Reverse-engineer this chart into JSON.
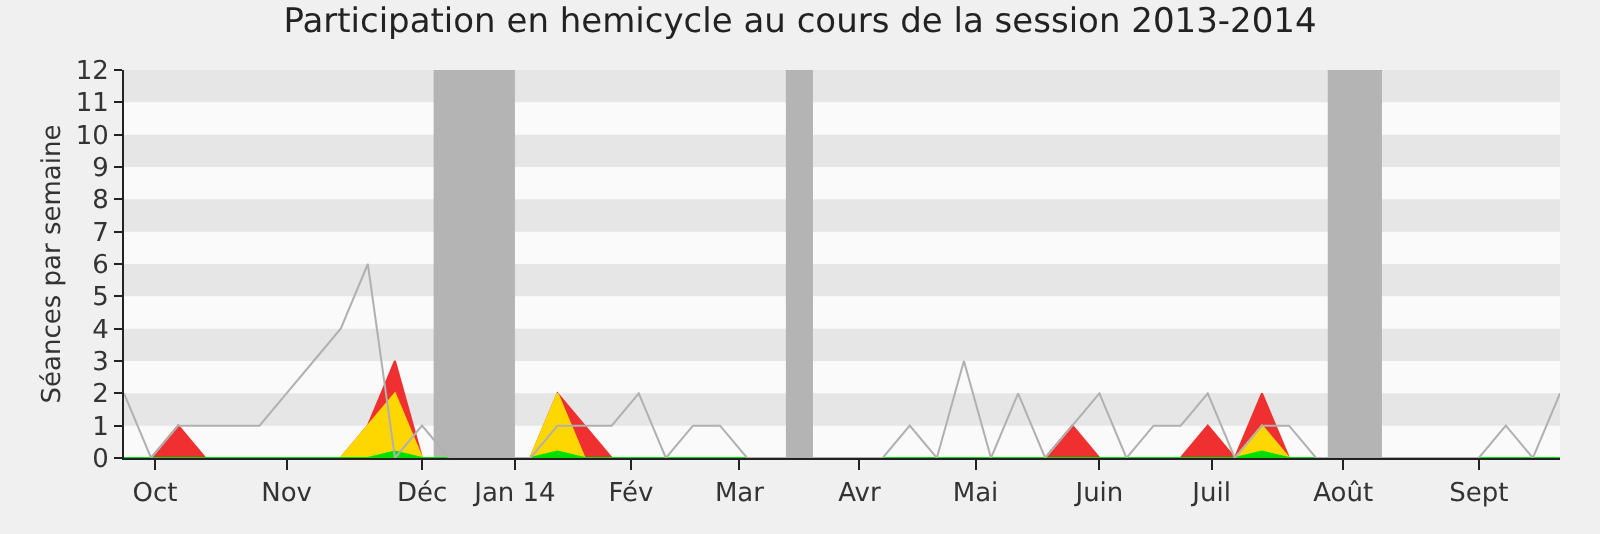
{
  "chart_data": {
    "type": "area",
    "title": "Participation en hemicycle au cours de la session 2013-2014",
    "ylabel": "Séances par semaine",
    "x": [
      "2013-09-23",
      "2013-09-30",
      "2013-10-07",
      "2013-10-14",
      "2013-10-21",
      "2013-10-28",
      "2013-11-04",
      "2013-11-11",
      "2013-11-18",
      "2013-11-25",
      "2013-12-02",
      "2013-12-09",
      "2013-12-16",
      "2013-12-23",
      "2013-12-30",
      "2014-01-06",
      "2014-01-13",
      "2014-01-20",
      "2014-01-27",
      "2014-02-03",
      "2014-02-10",
      "2014-02-17",
      "2014-02-24",
      "2014-03-03",
      "2014-03-10",
      "2014-03-17",
      "2014-03-24",
      "2014-03-31",
      "2014-04-07",
      "2014-04-14",
      "2014-04-21",
      "2014-04-28",
      "2014-05-05",
      "2014-05-12",
      "2014-05-19",
      "2014-05-26",
      "2014-06-02",
      "2014-06-09",
      "2014-06-16",
      "2014-06-23",
      "2014-06-30",
      "2014-07-07",
      "2014-07-14",
      "2014-07-21",
      "2014-07-28",
      "2014-08-04",
      "2014-08-11",
      "2014-08-18",
      "2014-08-25",
      "2014-09-01",
      "2014-09-08",
      "2014-09-15",
      "2014-09-22",
      "2014-09-29"
    ],
    "series": [
      {
        "color": "#f03030",
        "values": [
          0,
          0,
          1,
          0,
          0,
          0,
          0,
          0,
          0,
          1,
          3,
          0,
          0,
          0,
          0,
          0,
          2,
          1,
          0,
          0,
          0,
          0,
          0,
          0,
          0,
          0,
          0,
          0,
          0,
          0,
          0,
          0,
          0,
          0,
          0,
          1,
          0,
          0,
          0,
          0,
          1,
          0,
          2,
          0,
          0,
          0,
          0,
          0,
          0,
          0,
          0,
          0,
          0,
          0
        ]
      },
      {
        "color": "#ffd700",
        "values": [
          0,
          0,
          0,
          0,
          0,
          0,
          0,
          0,
          0,
          1,
          2,
          0,
          0,
          0,
          0,
          0,
          2,
          0,
          0,
          0,
          0,
          0,
          0,
          0,
          0,
          0,
          0,
          0,
          0,
          0,
          0,
          0,
          0,
          0,
          0,
          0,
          0,
          0,
          0,
          0,
          0,
          0,
          1,
          0,
          0,
          0,
          0,
          0,
          0,
          0,
          0,
          0,
          0,
          0
        ]
      },
      {
        "color": "#00e000",
        "values": [
          0,
          0,
          0,
          0,
          0,
          0,
          0,
          0,
          0,
          0,
          0.2,
          0,
          0,
          0,
          0,
          0,
          0.2,
          0,
          0,
          0,
          0,
          0,
          0,
          0,
          0,
          0,
          0,
          0,
          0,
          0,
          0,
          0,
          0,
          0,
          0,
          0,
          0,
          0,
          0,
          0,
          0,
          0,
          0.2,
          0,
          0,
          0,
          0,
          0,
          0,
          0,
          0,
          0,
          0,
          0
        ]
      },
      {
        "type": "line",
        "color": "#b0b0b0",
        "values": [
          2,
          0,
          1,
          1,
          1,
          1,
          2,
          3,
          4,
          6,
          0,
          1,
          0,
          0,
          0,
          0,
          1,
          1,
          1,
          2,
          0,
          1,
          1,
          0,
          0,
          0,
          0,
          0,
          0,
          1,
          0,
          3,
          0,
          2,
          0,
          1,
          2,
          0,
          1,
          1,
          2,
          0,
          1,
          1,
          0,
          0,
          0,
          0,
          0,
          0,
          0,
          1,
          0,
          2
        ]
      }
    ],
    "xlim": [
      "2013-09-23",
      "2014-09-29"
    ],
    "ylim": [
      0,
      12
    ],
    "yticks": [
      0,
      1,
      2,
      3,
      4,
      5,
      6,
      7,
      8,
      9,
      10,
      11,
      12
    ],
    "xticks": [
      {
        "value": "2013-10-01",
        "label": "Oct"
      },
      {
        "value": "2013-11-04",
        "label": "Nov"
      },
      {
        "value": "2013-12-09",
        "label": "Déc"
      },
      {
        "value": "2014-01-02",
        "label": "Jan 14"
      },
      {
        "value": "2014-02-01",
        "label": "Fév"
      },
      {
        "value": "2014-03-01",
        "label": "Mar"
      },
      {
        "value": "2014-04-01",
        "label": "Avr"
      },
      {
        "value": "2014-05-01",
        "label": "Mai"
      },
      {
        "value": "2014-06-02",
        "label": "Juin"
      },
      {
        "value": "2014-07-01",
        "label": "Juil"
      },
      {
        "value": "2014-08-04",
        "label": "Août"
      },
      {
        "value": "2014-09-08",
        "label": "Sept"
      }
    ],
    "bands": [
      {
        "axis": "y",
        "from": 1,
        "to": 2,
        "color": "#e6e6e6"
      },
      {
        "axis": "y",
        "from": 3,
        "to": 4,
        "color": "#e6e6e6"
      },
      {
        "axis": "y",
        "from": 5,
        "to": 6,
        "color": "#e6e6e6"
      },
      {
        "axis": "y",
        "from": 7,
        "to": 8,
        "color": "#e6e6e6"
      },
      {
        "axis": "y",
        "from": 9,
        "to": 10,
        "color": "#e6e6e6"
      },
      {
        "axis": "y",
        "from": 11,
        "to": 12,
        "color": "#e6e6e6"
      },
      {
        "axis": "x",
        "from": "2013-12-12",
        "to": "2014-01-02",
        "color": "#b4b4b4"
      },
      {
        "axis": "x",
        "from": "2014-03-13",
        "to": "2014-03-20",
        "color": "#b4b4b4"
      },
      {
        "axis": "x",
        "from": "2014-07-31",
        "to": "2014-08-14",
        "color": "#b4b4b4"
      }
    ],
    "grid": false,
    "marker": "none"
  }
}
